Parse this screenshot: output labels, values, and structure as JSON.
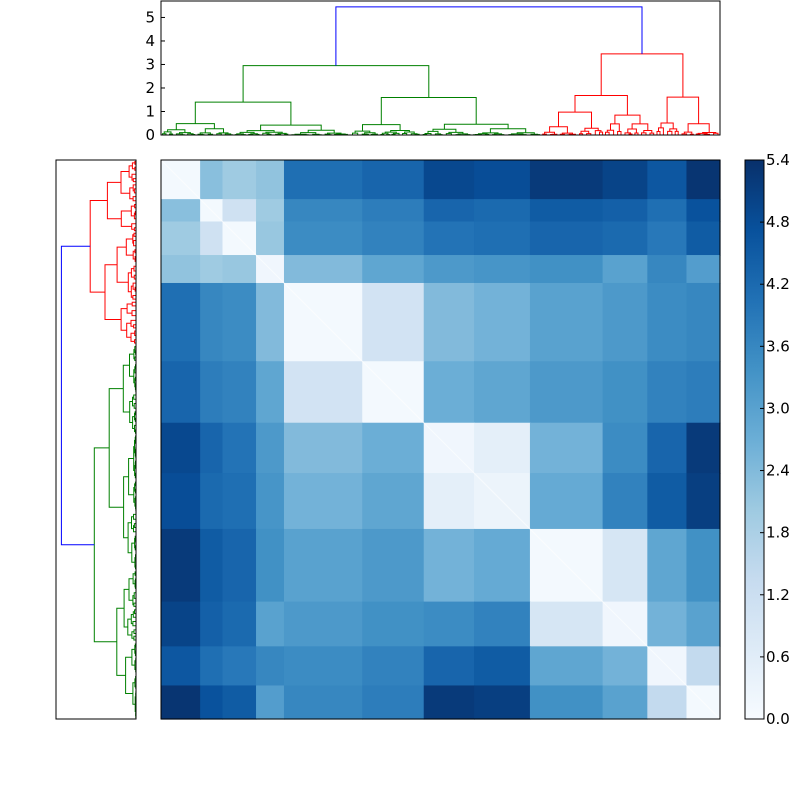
{
  "chart_data": [
    {
      "name": "top-dendrogram",
      "type": "dendrogram",
      "orientation": "top",
      "ylim": [
        0,
        5.7
      ],
      "yticks": [
        0,
        1,
        2,
        3,
        4,
        5
      ],
      "colors": {
        "root": "#0000ff",
        "cluster_a": "#008000",
        "cluster_b": "#ff0000"
      },
      "root_height": 5.45,
      "cluster_a_height": 2.95,
      "cluster_b_height": 3.45
    },
    {
      "name": "left-dendrogram",
      "type": "dendrogram",
      "orientation": "left",
      "colors": {
        "root": "#0000ff",
        "cluster_a": "#008000",
        "cluster_b": "#ff0000"
      },
      "root_height": 5.45
    },
    {
      "name": "distance-heatmap",
      "type": "heatmap",
      "vmin": 0.0,
      "vmax": 5.4,
      "cmap": [
        "#f7fbff",
        "#deebf7",
        "#c6dbef",
        "#9ecae1",
        "#6baed6",
        "#4292c6",
        "#2171b5",
        "#08519c",
        "#08306b"
      ],
      "block_order": [
        "b1",
        "b2",
        "b3",
        "b4",
        "b5",
        "b6",
        "b7",
        "b8",
        "b9",
        "b10",
        "b11",
        "b12"
      ],
      "block_sizes": [
        7,
        4,
        6,
        5,
        14,
        11,
        9,
        10,
        13,
        8,
        7,
        6
      ],
      "matrix": [
        [
          0.1,
          2.3,
          2.0,
          2.2,
          4.1,
          4.3,
          4.9,
          4.8,
          5.2,
          5.0,
          4.6,
          5.3
        ],
        [
          2.3,
          0.1,
          1.1,
          2.0,
          3.6,
          3.8,
          4.3,
          4.2,
          4.5,
          4.4,
          4.1,
          4.7
        ],
        [
          2.0,
          1.1,
          0.1,
          2.1,
          3.5,
          3.7,
          4.0,
          4.1,
          4.3,
          4.2,
          3.9,
          4.5
        ],
        [
          2.2,
          2.0,
          2.1,
          0.2,
          2.4,
          2.9,
          3.2,
          3.3,
          3.4,
          3.0,
          3.6,
          3.1
        ],
        [
          4.1,
          3.6,
          3.5,
          2.4,
          0.1,
          1.0,
          2.4,
          2.6,
          3.0,
          3.2,
          3.5,
          3.6
        ],
        [
          4.3,
          3.8,
          3.7,
          2.9,
          1.0,
          0.1,
          2.7,
          2.9,
          3.2,
          3.4,
          3.7,
          3.8
        ],
        [
          4.9,
          4.3,
          4.0,
          3.2,
          2.4,
          2.7,
          0.2,
          0.5,
          2.6,
          3.5,
          4.3,
          5.2
        ],
        [
          4.8,
          4.2,
          4.1,
          3.3,
          2.6,
          2.9,
          0.5,
          0.3,
          2.8,
          3.7,
          4.5,
          5.1
        ],
        [
          5.2,
          4.5,
          4.3,
          3.4,
          3.0,
          3.2,
          2.6,
          2.8,
          0.1,
          0.9,
          2.9,
          3.4
        ],
        [
          5.0,
          4.4,
          4.2,
          3.0,
          3.2,
          3.4,
          3.5,
          3.7,
          0.9,
          0.2,
          2.6,
          3.0
        ],
        [
          4.6,
          4.1,
          3.9,
          3.6,
          3.5,
          3.7,
          4.3,
          4.5,
          2.9,
          2.6,
          0.2,
          1.4
        ],
        [
          5.3,
          4.7,
          4.5,
          3.1,
          3.6,
          3.8,
          5.2,
          5.1,
          3.4,
          3.0,
          1.4,
          0.1
        ]
      ]
    },
    {
      "name": "colorbar",
      "type": "colorbar",
      "vmin": 0.0,
      "vmax": 5.4,
      "tick_labels": [
        "0.0",
        "0.6",
        "1.2",
        "1.8",
        "2.4",
        "3.0",
        "3.6",
        "4.2",
        "4.8",
        "5.4"
      ]
    }
  ]
}
